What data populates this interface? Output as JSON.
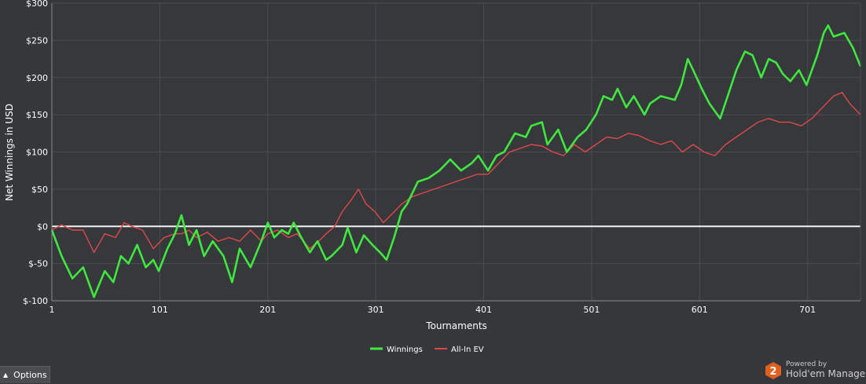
{
  "chart_data": {
    "type": "line",
    "ylabel": "Net Winnings in USD",
    "xlabel": "Tournaments",
    "xlim": [
      1,
      750
    ],
    "ylim": [
      -100,
      300
    ],
    "x_ticks": [
      "1",
      "101",
      "201",
      "301",
      "401",
      "501",
      "601",
      "701"
    ],
    "y_ticks": [
      "$-100",
      "$-50",
      "$0",
      "$50",
      "$100",
      "$150",
      "$200",
      "$250",
      "$300"
    ],
    "grid": true,
    "legend_position": "bottom-center",
    "series": [
      {
        "name": "Winnings",
        "color": "#3ee83e",
        "points": [
          [
            1,
            -5
          ],
          [
            10,
            -40
          ],
          [
            20,
            -70
          ],
          [
            30,
            -55
          ],
          [
            40,
            -95
          ],
          [
            50,
            -60
          ],
          [
            58,
            -75
          ],
          [
            65,
            -40
          ],
          [
            72,
            -50
          ],
          [
            80,
            -25
          ],
          [
            88,
            -55
          ],
          [
            95,
            -45
          ],
          [
            100,
            -60
          ],
          [
            108,
            -30
          ],
          [
            115,
            -10
          ],
          [
            121,
            15
          ],
          [
            128,
            -25
          ],
          [
            135,
            -5
          ],
          [
            142,
            -40
          ],
          [
            150,
            -20
          ],
          [
            160,
            -40
          ],
          [
            168,
            -75
          ],
          [
            175,
            -30
          ],
          [
            185,
            -55
          ],
          [
            195,
            -20
          ],
          [
            201,
            5
          ],
          [
            207,
            -15
          ],
          [
            214,
            -5
          ],
          [
            220,
            -10
          ],
          [
            225,
            5
          ],
          [
            232,
            -15
          ],
          [
            240,
            -35
          ],
          [
            247,
            -20
          ],
          [
            255,
            -45
          ],
          [
            260,
            -40
          ],
          [
            270,
            -25
          ],
          [
            275,
            -2
          ],
          [
            283,
            -35
          ],
          [
            290,
            -12
          ],
          [
            298,
            -25
          ],
          [
            305,
            -35
          ],
          [
            311,
            -45
          ],
          [
            318,
            -15
          ],
          [
            325,
            20
          ],
          [
            330,
            30
          ],
          [
            340,
            60
          ],
          [
            350,
            65
          ],
          [
            360,
            75
          ],
          [
            370,
            90
          ],
          [
            380,
            75
          ],
          [
            390,
            85
          ],
          [
            396,
            95
          ],
          [
            405,
            75
          ],
          [
            413,
            95
          ],
          [
            420,
            100
          ],
          [
            430,
            125
          ],
          [
            440,
            120
          ],
          [
            445,
            135
          ],
          [
            455,
            140
          ],
          [
            460,
            110
          ],
          [
            470,
            130
          ],
          [
            478,
            100
          ],
          [
            488,
            120
          ],
          [
            496,
            130
          ],
          [
            505,
            150
          ],
          [
            512,
            175
          ],
          [
            520,
            170
          ],
          [
            525,
            185
          ],
          [
            533,
            160
          ],
          [
            540,
            175
          ],
          [
            550,
            150
          ],
          [
            555,
            165
          ],
          [
            565,
            175
          ],
          [
            578,
            170
          ],
          [
            584,
            190
          ],
          [
            590,
            225
          ],
          [
            595,
            210
          ],
          [
            603,
            185
          ],
          [
            610,
            165
          ],
          [
            620,
            145
          ],
          [
            627,
            175
          ],
          [
            635,
            210
          ],
          [
            643,
            235
          ],
          [
            650,
            230
          ],
          [
            658,
            200
          ],
          [
            665,
            225
          ],
          [
            672,
            220
          ],
          [
            678,
            205
          ],
          [
            685,
            195
          ],
          [
            693,
            210
          ],
          [
            700,
            190
          ],
          [
            710,
            230
          ],
          [
            716,
            260
          ],
          [
            720,
            270
          ],
          [
            725,
            255
          ],
          [
            735,
            260
          ],
          [
            743,
            240
          ],
          [
            750,
            215
          ]
        ]
      },
      {
        "name": "All-In EV",
        "color": "#e04848",
        "points": [
          [
            1,
            -5
          ],
          [
            10,
            2
          ],
          [
            20,
            -5
          ],
          [
            30,
            -5
          ],
          [
            40,
            -35
          ],
          [
            50,
            -10
          ],
          [
            60,
            -15
          ],
          [
            68,
            5
          ],
          [
            75,
            0
          ],
          [
            85,
            -5
          ],
          [
            95,
            -30
          ],
          [
            105,
            -15
          ],
          [
            115,
            -10
          ],
          [
            121,
            -10
          ],
          [
            128,
            -5
          ],
          [
            135,
            -15
          ],
          [
            145,
            -8
          ],
          [
            155,
            -20
          ],
          [
            165,
            -15
          ],
          [
            175,
            -20
          ],
          [
            185,
            -5
          ],
          [
            195,
            -20
          ],
          [
            201,
            -10
          ],
          [
            210,
            -5
          ],
          [
            220,
            -15
          ],
          [
            228,
            -10
          ],
          [
            240,
            -30
          ],
          [
            248,
            -20
          ],
          [
            255,
            -10
          ],
          [
            263,
            0
          ],
          [
            270,
            20
          ],
          [
            278,
            35
          ],
          [
            285,
            50
          ],
          [
            292,
            30
          ],
          [
            300,
            20
          ],
          [
            308,
            5
          ],
          [
            315,
            15
          ],
          [
            325,
            30
          ],
          [
            335,
            40
          ],
          [
            345,
            45
          ],
          [
            355,
            50
          ],
          [
            365,
            55
          ],
          [
            375,
            60
          ],
          [
            385,
            65
          ],
          [
            395,
            70
          ],
          [
            405,
            70
          ],
          [
            415,
            85
          ],
          [
            425,
            100
          ],
          [
            435,
            105
          ],
          [
            445,
            110
          ],
          [
            455,
            108
          ],
          [
            465,
            100
          ],
          [
            475,
            95
          ],
          [
            485,
            110
          ],
          [
            495,
            100
          ],
          [
            505,
            110
          ],
          [
            515,
            120
          ],
          [
            525,
            118
          ],
          [
            535,
            125
          ],
          [
            545,
            122
          ],
          [
            555,
            115
          ],
          [
            565,
            110
          ],
          [
            575,
            115
          ],
          [
            585,
            100
          ],
          [
            595,
            110
          ],
          [
            605,
            100
          ],
          [
            615,
            95
          ],
          [
            625,
            110
          ],
          [
            635,
            120
          ],
          [
            645,
            130
          ],
          [
            655,
            140
          ],
          [
            665,
            145
          ],
          [
            675,
            140
          ],
          [
            685,
            140
          ],
          [
            695,
            135
          ],
          [
            705,
            145
          ],
          [
            715,
            160
          ],
          [
            725,
            175
          ],
          [
            733,
            180
          ],
          [
            740,
            165
          ],
          [
            750,
            150
          ]
        ]
      }
    ]
  },
  "options_button": {
    "label": "Options",
    "icon": "chevron-up-icon"
  },
  "branding": {
    "powered_by": "Powered by",
    "name": "Hold'em Manager",
    "logo_text": "2",
    "logo_color": "#e06020"
  }
}
